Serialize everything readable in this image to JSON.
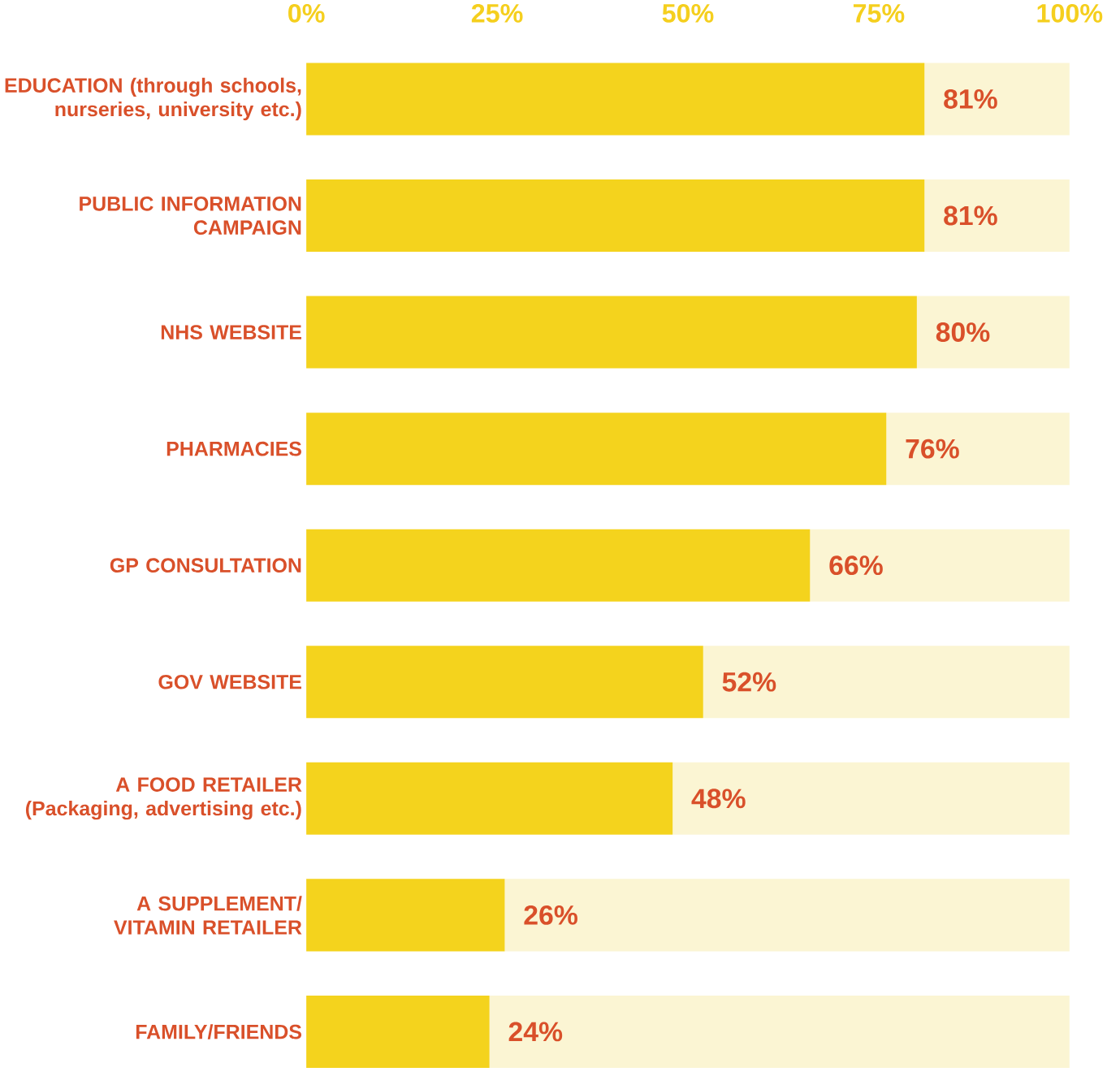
{
  "chart_data": {
    "type": "bar",
    "orientation": "horizontal",
    "stacked": true,
    "categories": [
      "EDUCATION (through schools, nurseries, university etc.)",
      "PUBLIC INFORMATION CAMPAIGN",
      "NHS WEBSITE",
      "PHARMACIES",
      "GP CONSULTATION",
      "GOV WEBSITE",
      "A FOOD RETAILER (Packaging, advertising etc.)",
      "A SUPPLEMENT/ VITAMIN RETAILER",
      "FAMILY/FRIENDS"
    ],
    "series": [
      {
        "color": "#f4d31d",
        "values": [
          81,
          81,
          80,
          76,
          66,
          52,
          48,
          26,
          24
        ],
        "value_labels": [
          "81%",
          "81%",
          "80%",
          "76%",
          "66%",
          "52%",
          "48%",
          "26%",
          "24%"
        ]
      },
      {
        "color": "#fbf5d3",
        "values": [
          19,
          19,
          20,
          24,
          34,
          48,
          52,
          74,
          76
        ]
      }
    ],
    "xlim": [
      0,
      100
    ],
    "xticks": [
      {
        "value": 0,
        "label": "0%"
      },
      {
        "value": 25,
        "label": "25%"
      },
      {
        "value": 50,
        "label": "50%"
      },
      {
        "value": 75,
        "label": "75%"
      },
      {
        "value": 100,
        "label": "100%"
      }
    ],
    "grid": false
  }
}
